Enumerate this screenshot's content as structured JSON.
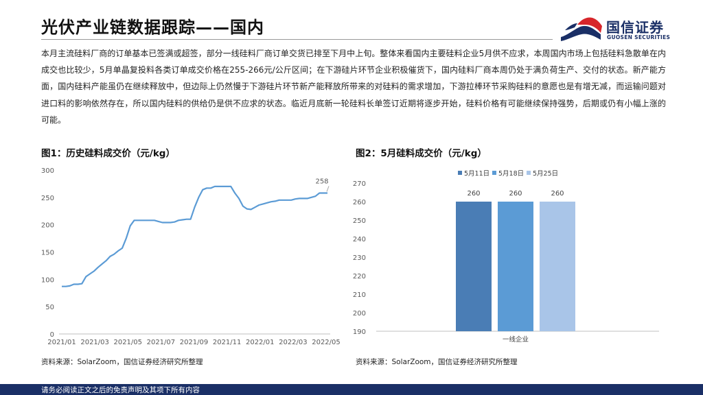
{
  "header": {
    "title": "光伏产业链数据跟踪——国内"
  },
  "logo": {
    "name": "国信证券",
    "en": "GUOSEN SECURITIES"
  },
  "paragraph": "本月主流硅料厂商的订单基本已签满或超签，部分一线硅料厂商订单交货已排至下月中上旬。整体来看国内主要硅料企业5月供不应求，本周国内市场上包括硅料急散单在内成交也比较少，5月单晶复投料各类订单成交价格在255-266元/公斤区间；在下游硅片环节企业积极催货下，国内硅料厂商本周仍处于满负荷生产、交付的状态。新产能方面，国内硅料产能虽仍在继续释放中，但边际上仍然慢于下游硅片环节新产能释放所带来的对硅料的需求增加，下游拉棒环节采购硅料的意愿也是有增无减，而运输问题对进口料的影响依然存在，所以国内硅料的供给仍是供不应求的状态。临近月底新一轮硅料长单签订近期将逐步开始，硅料价格有可能继续保持强势，后期或仍有小幅上涨的可能。",
  "figures": {
    "fig1_title": "图1：历史硅料成交价（元/kg）",
    "fig2_title": "图2：5月硅料成交价（元/kg）",
    "source1": "资料来源：SolarZoom，国信证券经济研究所整理",
    "source2": "资料来源：SolarZoom，国信证券经济研究所整理"
  },
  "footer": {
    "disclaimer": "请务必阅读正文之后的免责声明及其项下所有内容"
  },
  "colors": {
    "brand_navy": "#1a2f66",
    "brand_red": "#d7262b",
    "line": "#5b9bd5",
    "bar1": "#4a7db5",
    "bar2": "#5b9bd5",
    "bar3": "#a9c5e8"
  },
  "chart_data": [
    {
      "type": "line",
      "title": "图1：历史硅料成交价（元/kg）",
      "ylim": [
        0,
        300
      ],
      "yticks": [
        "0",
        "50",
        "100",
        "150",
        "200",
        "250",
        "300"
      ],
      "xticks": [
        "2021/01",
        "2021/03",
        "2021/05",
        "2021/07",
        "2021/09",
        "2021/11",
        "2022/01",
        "2022/03",
        "2022/05"
      ],
      "grid": false,
      "annotation": "258",
      "series": [
        {
          "values": [
            87,
            87,
            88,
            91,
            91,
            92,
            105,
            110,
            115,
            122,
            128,
            134,
            142,
            146,
            152,
            157,
            175,
            198,
            208,
            208,
            208,
            208,
            208,
            208,
            206,
            204,
            204,
            204,
            205,
            208,
            209,
            210,
            210,
            232,
            250,
            264,
            267,
            267,
            270,
            270,
            270,
            270,
            270,
            258,
            248,
            234,
            229,
            228,
            232,
            236,
            238,
            240,
            242,
            243,
            245,
            245,
            245,
            245,
            247,
            248,
            248,
            248,
            250,
            252,
            258,
            258,
            258
          ]
        }
      ]
    },
    {
      "type": "bar",
      "title": "图2：5月硅料成交价（元/kg）",
      "categories": [
        "一线企业"
      ],
      "ylim": [
        190,
        270
      ],
      "yticks": [
        "190",
        "200",
        "210",
        "220",
        "230",
        "240",
        "250",
        "260",
        "270"
      ],
      "legend": "top",
      "series": [
        {
          "name": "5月11日",
          "values": [
            260
          ]
        },
        {
          "name": "5月18日",
          "values": [
            260
          ]
        },
        {
          "name": "5月25日",
          "values": [
            260
          ]
        }
      ]
    }
  ]
}
